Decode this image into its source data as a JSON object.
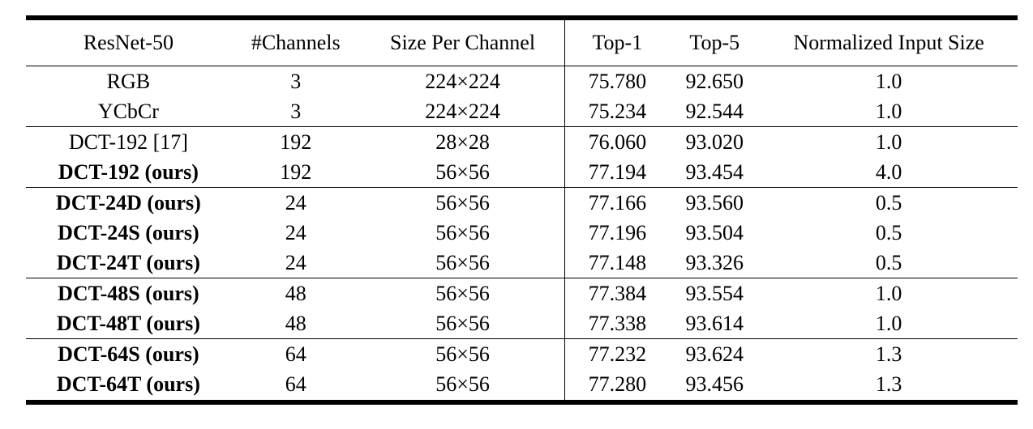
{
  "table": {
    "headers": [
      "ResNet-50",
      "#Channels",
      "Size Per Channel",
      "Top-1",
      "Top-5",
      "Normalized Input Size"
    ],
    "rows": [
      {
        "model": "RGB",
        "channels": "3",
        "size": "224×224",
        "top1": "75.780",
        "top5": "92.650",
        "input": "1.0",
        "bold": false,
        "group_start": false
      },
      {
        "model": "YCbCr",
        "channels": "3",
        "size": "224×224",
        "top1": "75.234",
        "top5": "92.544",
        "input": "1.0",
        "bold": false,
        "group_start": false
      },
      {
        "model": "DCT-192 [17]",
        "channels": "192",
        "size": "28×28",
        "top1": "76.060",
        "top5": "93.020",
        "input": "1.0",
        "bold": false,
        "group_start": true
      },
      {
        "model": "DCT-192 (ours)",
        "channels": "192",
        "size": "56×56",
        "top1": "77.194",
        "top5": "93.454",
        "input": "4.0",
        "bold": true,
        "group_start": false
      },
      {
        "model": "DCT-24D (ours)",
        "channels": "24",
        "size": "56×56",
        "top1": "77.166",
        "top5": "93.560",
        "input": "0.5",
        "bold": true,
        "group_start": true
      },
      {
        "model": "DCT-24S (ours)",
        "channels": "24",
        "size": "56×56",
        "top1": "77.196",
        "top5": "93.504",
        "input": "0.5",
        "bold": true,
        "group_start": false
      },
      {
        "model": "DCT-24T (ours)",
        "channels": "24",
        "size": "56×56",
        "top1": "77.148",
        "top5": "93.326",
        "input": "0.5",
        "bold": true,
        "group_start": false
      },
      {
        "model": "DCT-48S (ours)",
        "channels": "48",
        "size": "56×56",
        "top1": "77.384",
        "top5": "93.554",
        "input": "1.0",
        "bold": true,
        "group_start": true
      },
      {
        "model": "DCT-48T (ours)",
        "channels": "48",
        "size": "56×56",
        "top1": "77.338",
        "top5": "93.614",
        "input": "1.0",
        "bold": true,
        "group_start": false
      },
      {
        "model": "DCT-64S (ours)",
        "channels": "64",
        "size": "56×56",
        "top1": "77.232",
        "top5": "93.624",
        "input": "1.3",
        "bold": true,
        "group_start": true
      },
      {
        "model": "DCT-64T (ours)",
        "channels": "64",
        "size": "56×56",
        "top1": "77.280",
        "top5": "93.456",
        "input": "1.3",
        "bold": true,
        "group_start": false
      }
    ]
  }
}
